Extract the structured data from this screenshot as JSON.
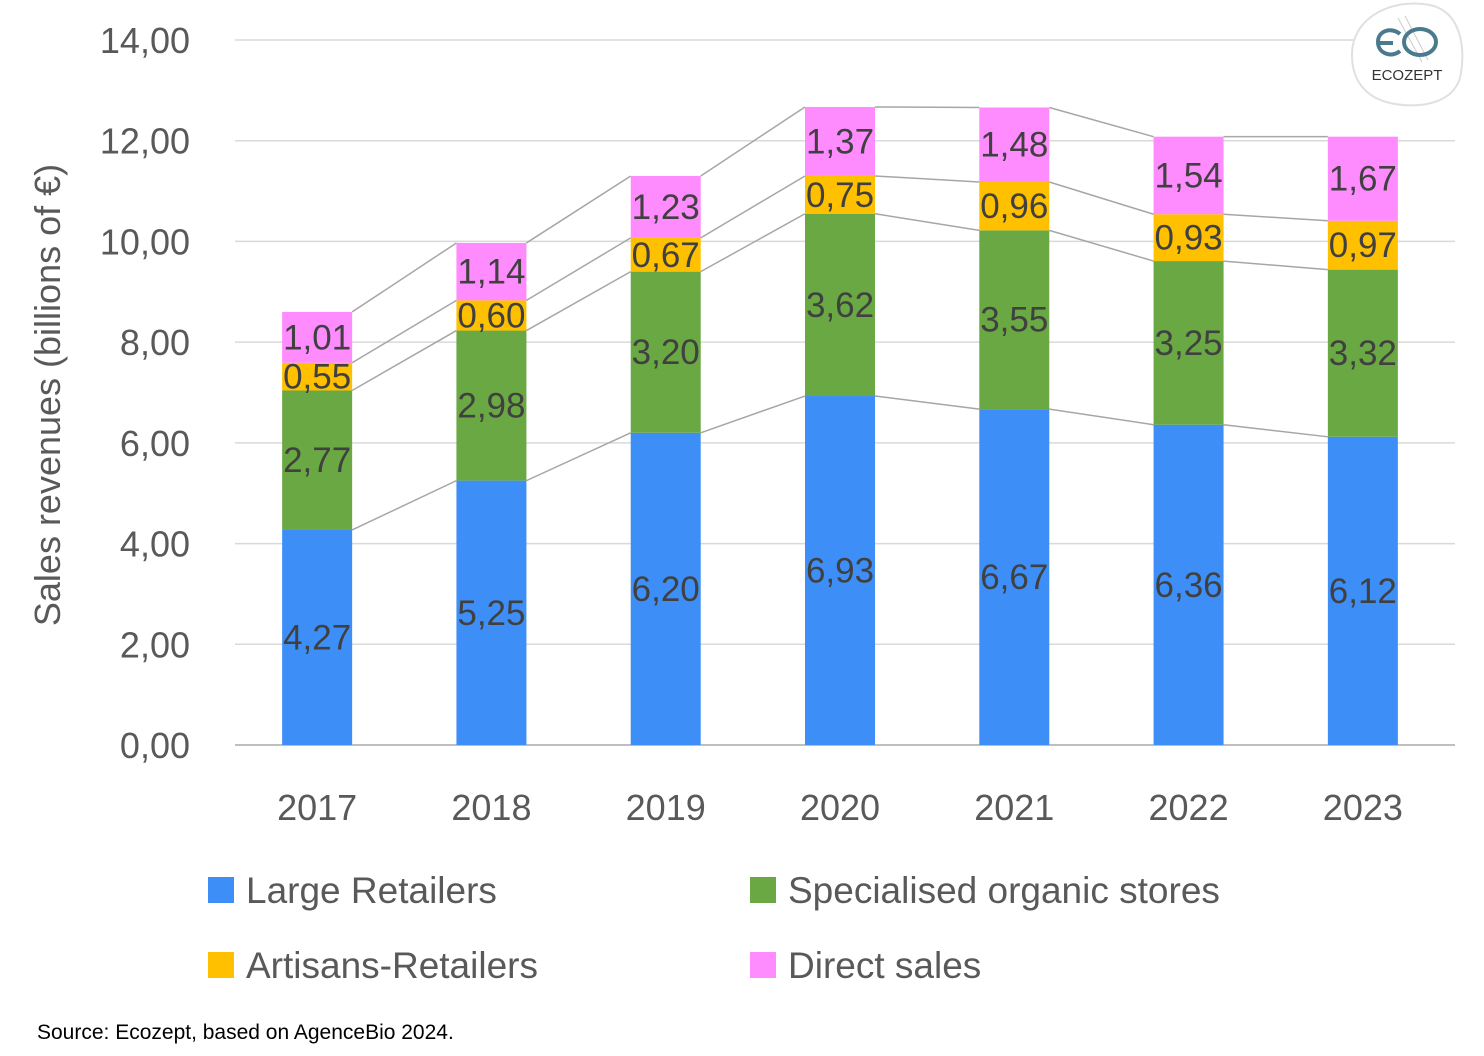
{
  "chart_data": {
    "type": "bar",
    "stacked": true,
    "ylabel": "Sales revenues (billions of €)",
    "xlabel": "",
    "ylim": [
      0,
      14
    ],
    "yticks": [
      "0,00",
      "2,00",
      "4,00",
      "6,00",
      "8,00",
      "10,00",
      "12,00",
      "14,00"
    ],
    "grid": true,
    "legend_placement": "bottom",
    "categories": [
      "2017",
      "2018",
      "2019",
      "2020",
      "2021",
      "2022",
      "2023"
    ],
    "series": [
      {
        "name": "Large Retailers",
        "color": "#3d8ff7",
        "values": [
          4.27,
          5.25,
          6.2,
          6.93,
          6.67,
          6.36,
          6.12
        ],
        "labels": [
          "4,27",
          "5,25",
          "6,20",
          "6,93",
          "6,67",
          "6,36",
          "6,12"
        ]
      },
      {
        "name": "Specialised organic stores",
        "color": "#6aa843",
        "values": [
          2.77,
          2.98,
          3.2,
          3.62,
          3.55,
          3.25,
          3.32
        ],
        "labels": [
          "2,77",
          "2,98",
          "3,20",
          "3,62",
          "3,55",
          "3,25",
          "3,32"
        ]
      },
      {
        "name": "Artisans-Retailers",
        "color": "#ffc000",
        "values": [
          0.55,
          0.6,
          0.67,
          0.75,
          0.96,
          0.93,
          0.97
        ],
        "labels": [
          "0,55",
          "0,60",
          "0,67",
          "0,75",
          "0,96",
          "0,93",
          "0,97"
        ]
      },
      {
        "name": "Direct sales",
        "color": "#ff8cff",
        "values": [
          1.01,
          1.14,
          1.23,
          1.37,
          1.48,
          1.54,
          1.67
        ],
        "labels": [
          "1,01",
          "1,14",
          "1,23",
          "1,37",
          "1,48",
          "1,54",
          "1,67"
        ]
      }
    ],
    "legend_order": [
      0,
      1,
      2,
      3
    ],
    "source": "Source: Ecozept, based on AgenceBio 2024.",
    "logo": "ECOZEPT"
  }
}
